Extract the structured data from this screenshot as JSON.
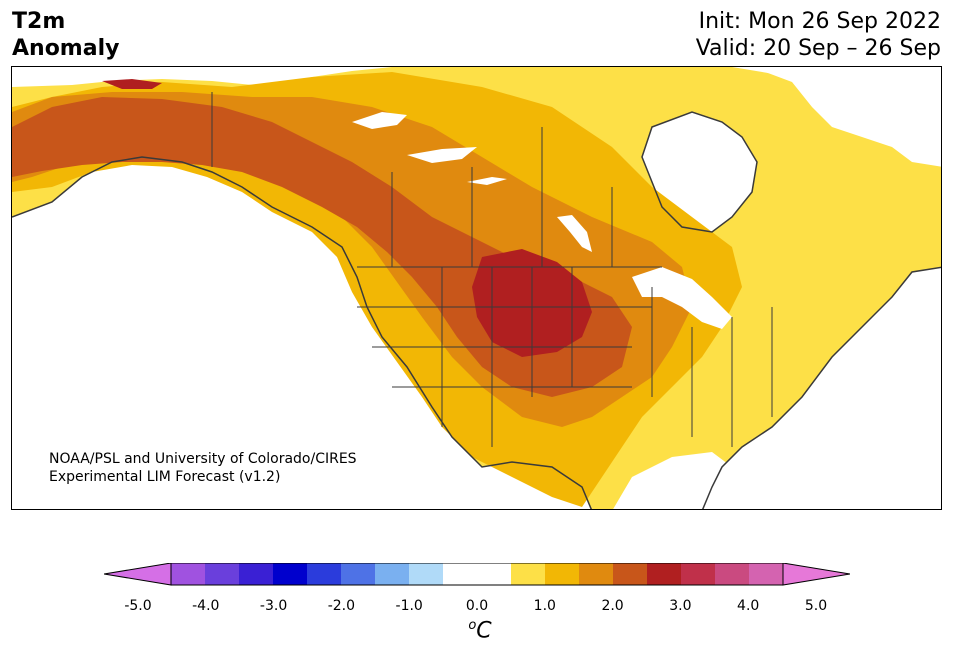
{
  "title": {
    "line1": "T2m",
    "line2": "Anomaly"
  },
  "dates": {
    "init": "Init: Mon 26 Sep 2022",
    "valid": "Valid: 20 Sep – 26 Sep"
  },
  "credit": {
    "line1": "NOAA/PSL and University of Colorado/CIRES",
    "line2": "Experimental LIM Forecast (v1.2)"
  },
  "colorbar": {
    "ticks": [
      "-5.0",
      "-4.0",
      "-3.0",
      "-2.0",
      "-1.0",
      "0.0",
      "1.0",
      "2.0",
      "3.0",
      "4.0",
      "5.0"
    ],
    "colors": [
      "#d56fe6",
      "#a052e0",
      "#6a3fdc",
      "#3a20d4",
      "#0000cd",
      "#2b3cdc",
      "#4e72e6",
      "#7ab0f0",
      "#b0daf8",
      "#ffffff",
      "#ffffff",
      "#fde047",
      "#f2b705",
      "#e08a0f",
      "#c8561a",
      "#b01f20",
      "#c0304a",
      "#ca4a80",
      "#d463b0",
      "#e678d8"
    ],
    "unit_base": "C",
    "unit_sup": "o"
  }
}
